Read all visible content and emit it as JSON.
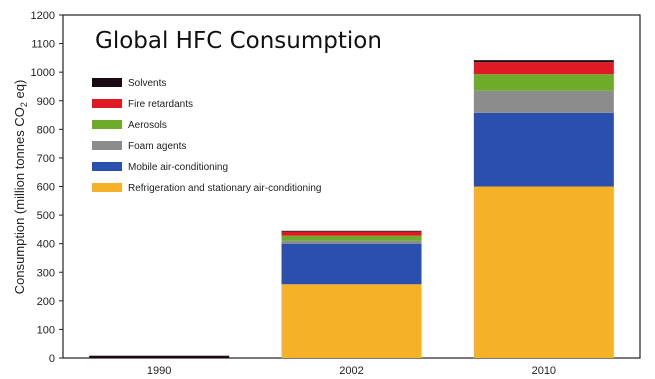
{
  "chart_data": {
    "type": "bar",
    "stacked": true,
    "title": "Global HFC Consumption",
    "ylabel_parts": {
      "pre": "Consumption (million tonnes CO",
      "sub": "2",
      "post": " eq)"
    },
    "xlabel": "",
    "ylim": [
      0,
      1200
    ],
    "yticks": [
      "0",
      "100",
      "200",
      "300",
      "400",
      "500",
      "600",
      "700",
      "800",
      "900",
      "1000",
      "1100",
      "1200"
    ],
    "categories": [
      "1990",
      "2002",
      "2010"
    ],
    "grid": false,
    "legend_position": "top-left",
    "series": [
      {
        "name": "Refrigeration and stationary air-conditioning",
        "color": "#f5b128",
        "values": [
          0,
          258,
          600
        ]
      },
      {
        "name": "Mobile air-conditioning",
        "color": "#2a4fae",
        "values": [
          0,
          142,
          258
        ]
      },
      {
        "name": "Foam agents",
        "color": "#8c8c8c",
        "values": [
          0,
          10,
          77
        ]
      },
      {
        "name": "Aerosols",
        "color": "#6eab2a",
        "values": [
          0,
          18,
          58
        ]
      },
      {
        "name": "Fire retardants",
        "color": "#e01a24",
        "values": [
          0,
          14,
          42
        ]
      },
      {
        "name": "Solvents",
        "color": "#1a0a14",
        "values": [
          8,
          3,
          7
        ]
      }
    ]
  }
}
